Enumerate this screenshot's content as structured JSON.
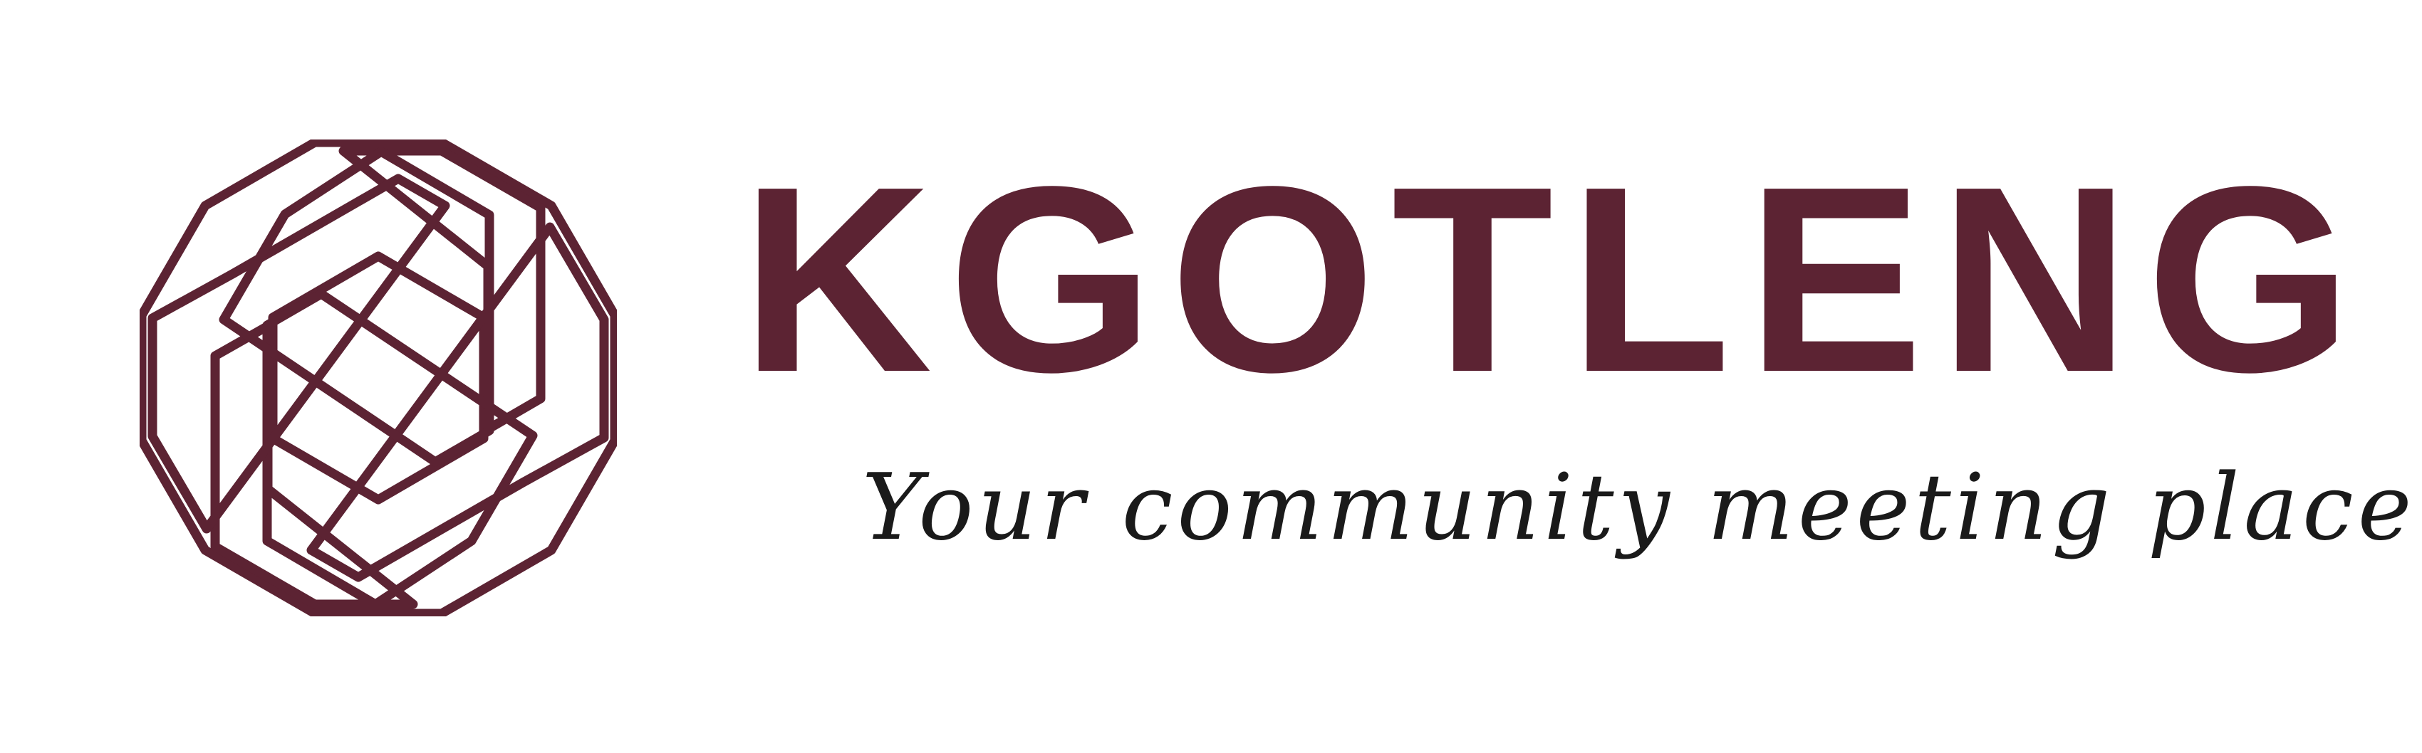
{
  "brand": {
    "name": "KGOTLENG",
    "tagline": "Your community meeting place"
  },
  "colors": {
    "brand": "#5c2333",
    "tagline": "#1a1a1a",
    "background": "#ffffff"
  },
  "icons": {
    "mark": "octagon-shutter-icon"
  }
}
